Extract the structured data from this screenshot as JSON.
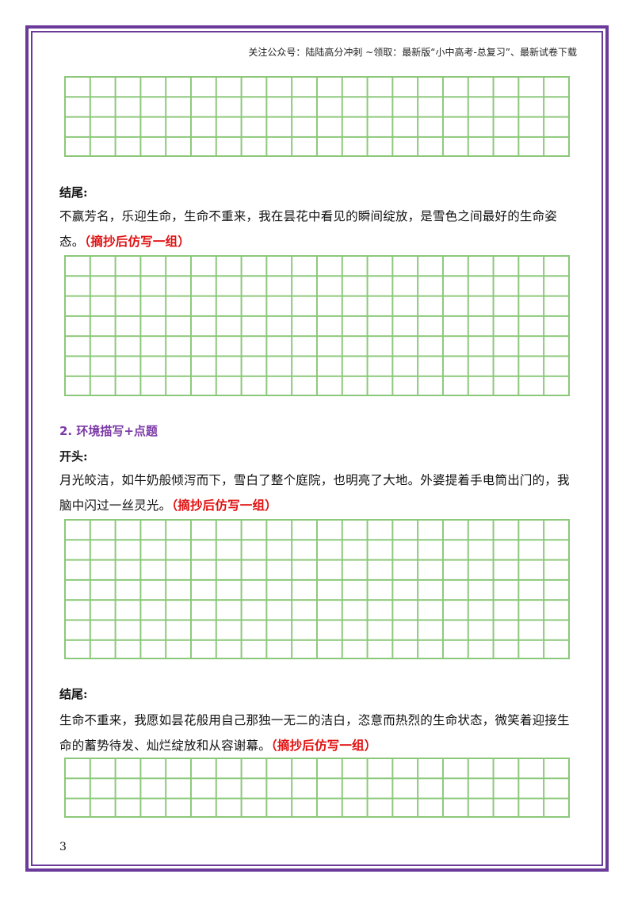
{
  "header": {
    "text": "关注公众号：陆陆高分冲刺  ~领取：最新版“小中高考-总复习”、最新试卷下载"
  },
  "blocks": [
    {
      "label": "结尾:",
      "text": "不赢芳名，乐迎生命，生命不重来，我在昙花中看见的瞬间绽放，是雪色之间最好的生命姿态。",
      "note": "（摘抄后仿写一组）"
    },
    {
      "section": "2. 环境描写+点题",
      "label": "开头:",
      "text": "月光皎洁，如牛奶般倾泻而下，雪白了整个庭院，也明亮了大地。外婆提着手电筒出门的，我脑中闪过一丝灵光。",
      "note": "（摘抄后仿写一组）"
    },
    {
      "label": "结尾:",
      "text": "生命不重来，我愿如昙花般用自己那独一无二的洁白，恣意而热烈的生命状态，微笑着迎接生命的蓄势待发、灿烂绽放和从容谢幕。",
      "note": "（摘抄后仿写一组）"
    }
  ],
  "page_number": "3"
}
